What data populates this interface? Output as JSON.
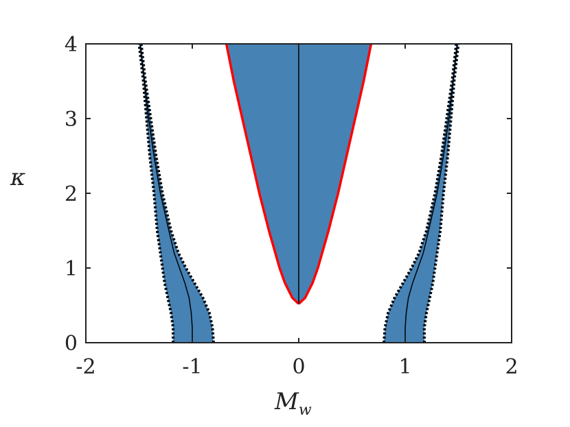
{
  "chart_data": {
    "type": "area",
    "xlabel": "M",
    "xlabel_sub": "w",
    "ylabel": "κ",
    "xlim": [
      -2,
      2
    ],
    "ylim": [
      0,
      4
    ],
    "xticks": [
      "-2",
      "-1",
      "0",
      "1",
      "2"
    ],
    "yticks": [
      "0",
      "1",
      "2",
      "3",
      "4"
    ],
    "grid": false,
    "fill_color": "#4682b4",
    "boundary_color_center": "#ff0000",
    "boundary_color_sides": "#000000",
    "central_region": {
      "kappa": [
        0.52,
        0.6,
        0.8,
        1.0,
        1.5,
        2.0,
        2.5,
        3.0,
        3.5,
        4.0
      ],
      "m_half_width": [
        0.0,
        0.06,
        0.13,
        0.18,
        0.28,
        0.37,
        0.45,
        0.53,
        0.61,
        0.68
      ],
      "center_line_m": 0
    },
    "side_regions": {
      "kappa": [
        0.0,
        0.2,
        0.4,
        0.6,
        0.8,
        1.0,
        1.2,
        1.5,
        2.0,
        2.5,
        3.0,
        3.5,
        4.0
      ],
      "outer_m": [
        1.18,
        1.18,
        1.2,
        1.23,
        1.26,
        1.28,
        1.3,
        1.33,
        1.36,
        1.4,
        1.43,
        1.46,
        1.5
      ],
      "inner_m": [
        0.8,
        0.81,
        0.84,
        0.9,
        0.98,
        1.06,
        1.13,
        1.2,
        1.28,
        1.34,
        1.39,
        1.44,
        1.48
      ],
      "mid_m": [
        1.0,
        1.0,
        1.01,
        1.03,
        1.07,
        1.12,
        1.17,
        1.22,
        1.3,
        1.36,
        1.41,
        1.45,
        1.49
      ]
    }
  }
}
